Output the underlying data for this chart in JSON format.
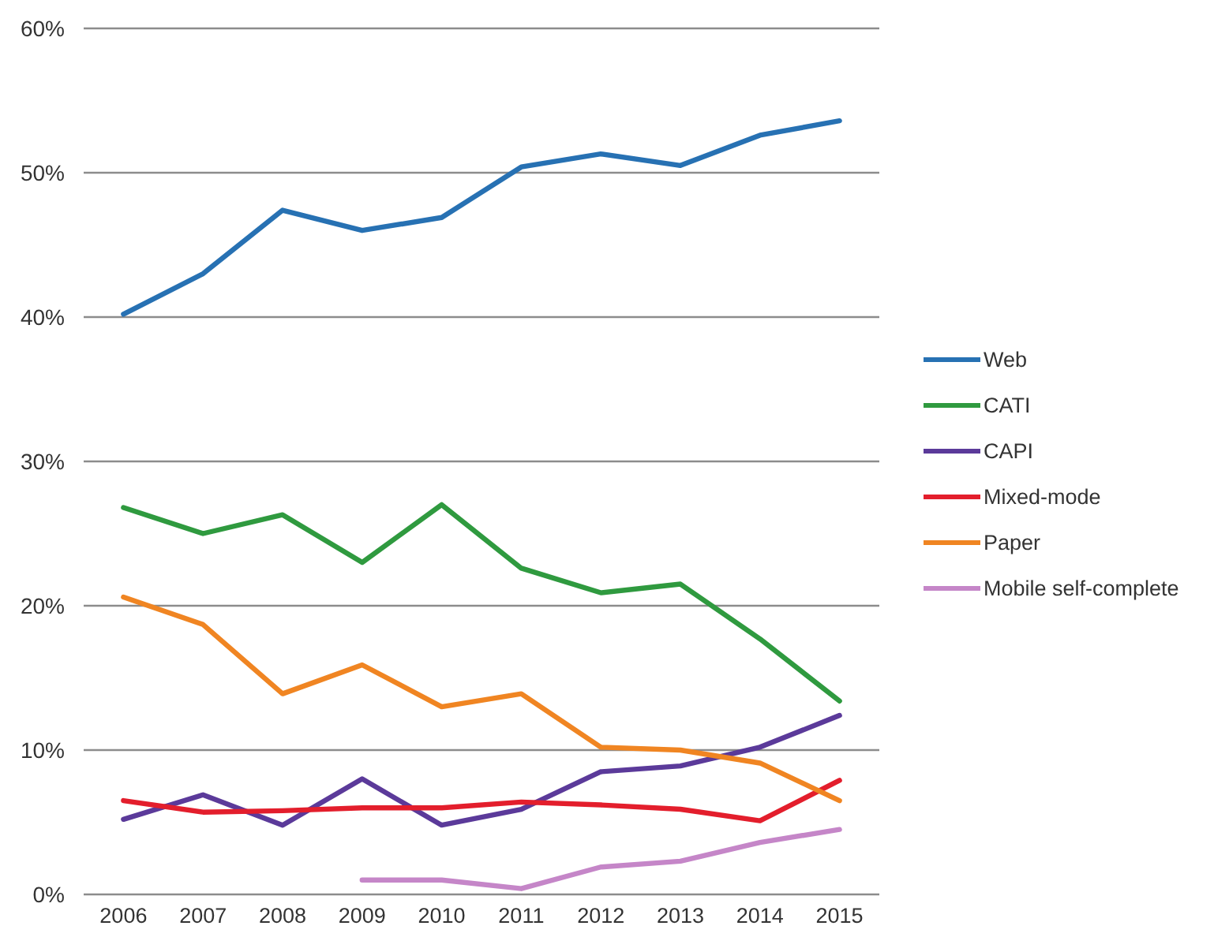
{
  "chart_data": {
    "type": "line",
    "categories": [
      "2006",
      "2007",
      "2008",
      "2009",
      "2010",
      "2011",
      "2012",
      "2013",
      "2014",
      "2015"
    ],
    "series": [
      {
        "name": "Web",
        "color": "#2771b3",
        "values": [
          40.2,
          43.0,
          47.4,
          46.0,
          46.9,
          50.4,
          51.3,
          50.5,
          52.6,
          53.6
        ]
      },
      {
        "name": "CATI",
        "color": "#2f9a3f",
        "values": [
          26.8,
          25.0,
          26.3,
          23.0,
          27.0,
          22.6,
          20.9,
          21.5,
          17.7,
          13.4
        ]
      },
      {
        "name": "CAPI",
        "color": "#5b3a9a",
        "values": [
          5.2,
          6.9,
          4.8,
          8.0,
          4.8,
          5.9,
          8.5,
          8.9,
          10.2,
          12.4
        ]
      },
      {
        "name": "Mixed-mode",
        "color": "#e31e2c",
        "values": [
          6.5,
          5.7,
          5.8,
          6.0,
          6.0,
          6.4,
          6.2,
          5.9,
          5.1,
          7.9
        ]
      },
      {
        "name": "Paper",
        "color": "#f08522",
        "values": [
          20.6,
          18.7,
          13.9,
          15.9,
          13.0,
          13.9,
          10.2,
          10.0,
          9.1,
          6.5
        ]
      },
      {
        "name": "Mobile self-complete",
        "color": "#c586c8",
        "values": [
          null,
          null,
          null,
          1.0,
          1.0,
          0.4,
          1.9,
          2.3,
          3.6,
          4.5
        ]
      }
    ],
    "ylim": [
      0,
      60
    ],
    "yticks": [
      {
        "value": 0,
        "label": "0%"
      },
      {
        "value": 10,
        "label": "10%"
      },
      {
        "value": 20,
        "label": "20%"
      },
      {
        "value": 30,
        "label": "30%"
      },
      {
        "value": 40,
        "label": "40%"
      },
      {
        "value": 50,
        "label": "50%"
      },
      {
        "value": 60,
        "label": "60%"
      }
    ],
    "grid": "y",
    "legend": "right",
    "marker": "none",
    "line_style": "solid"
  }
}
